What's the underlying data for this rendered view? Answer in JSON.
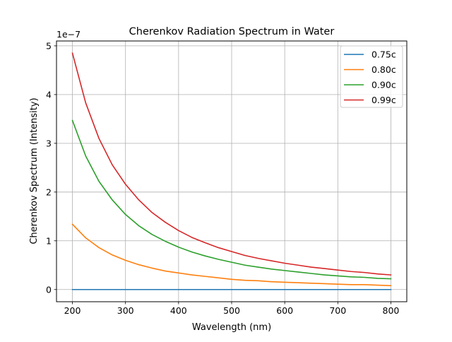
{
  "chart_data": {
    "type": "line",
    "title": "Cherenkov Radiation Spectrum in Water",
    "xlabel": "Wavelength (nm)",
    "ylabel": "Cherenkov Spectrum (Intensity)",
    "y_offset_label": "1e−7",
    "y_scale": 1e-07,
    "xlim": [
      170,
      830
    ],
    "ylim": [
      -0.25,
      5.1
    ],
    "x_ticks": [
      200,
      300,
      400,
      500,
      600,
      700,
      800
    ],
    "y_ticks": [
      0,
      1,
      2,
      3,
      4,
      5
    ],
    "grid": true,
    "legend_position": "top-right",
    "x": [
      200,
      225,
      250,
      275,
      300,
      325,
      350,
      375,
      400,
      425,
      450,
      475,
      500,
      525,
      550,
      575,
      600,
      625,
      650,
      675,
      700,
      725,
      750,
      775,
      800
    ],
    "series": [
      {
        "name": "0.75c",
        "color": "#1f77b4",
        "values": [
          0,
          0,
          0,
          0,
          0,
          0,
          0,
          0,
          0,
          0,
          0,
          0,
          0,
          0,
          0,
          0,
          0,
          0,
          0,
          0,
          0,
          0,
          0,
          0,
          0
        ]
      },
      {
        "name": "0.80c",
        "color": "#ff7f0e",
        "values": [
          1.34,
          1.06,
          0.86,
          0.71,
          0.6,
          0.51,
          0.44,
          0.38,
          0.34,
          0.3,
          0.27,
          0.24,
          0.21,
          0.19,
          0.18,
          0.16,
          0.15,
          0.14,
          0.13,
          0.12,
          0.11,
          0.1,
          0.1,
          0.09,
          0.08
        ]
      },
      {
        "name": "0.90c",
        "color": "#2ca02c",
        "values": [
          3.47,
          2.74,
          2.22,
          1.84,
          1.54,
          1.31,
          1.13,
          0.99,
          0.87,
          0.77,
          0.69,
          0.62,
          0.56,
          0.5,
          0.46,
          0.42,
          0.39,
          0.36,
          0.33,
          0.3,
          0.28,
          0.26,
          0.25,
          0.23,
          0.22
        ]
      },
      {
        "name": "0.99c",
        "color": "#d62728",
        "values": [
          4.85,
          3.83,
          3.1,
          2.56,
          2.16,
          1.84,
          1.58,
          1.38,
          1.21,
          1.07,
          0.96,
          0.86,
          0.78,
          0.7,
          0.64,
          0.59,
          0.54,
          0.5,
          0.46,
          0.43,
          0.4,
          0.37,
          0.35,
          0.32,
          0.3
        ]
      }
    ]
  }
}
